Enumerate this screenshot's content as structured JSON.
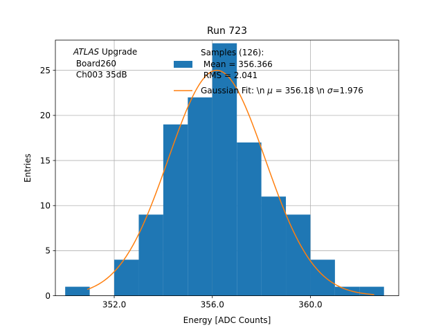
{
  "chart_data": {
    "type": "bar",
    "title": "Run 723",
    "xlabel": "Energy [ADC Counts]",
    "ylabel": "Entries",
    "xlim": [
      349.6,
      363.6
    ],
    "ylim": [
      0,
      28.35
    ],
    "xticks": [
      352.0,
      356.0,
      360.0
    ],
    "xtick_labels": [
      "352.0",
      "356.0",
      "360.0"
    ],
    "yticks": [
      0,
      5,
      10,
      15,
      20,
      25
    ],
    "ytick_labels": [
      "0",
      "5",
      "10",
      "15",
      "20",
      "25"
    ],
    "grid": true,
    "legend_position": "top-right",
    "annotation": {
      "line1_italic": "ATLAS",
      "line1_rest": " Upgrade",
      "line2": " Board260",
      "line3": " Ch003 35dB"
    },
    "histogram": {
      "name_lines": [
        "Samples (126):",
        " Mean = 356.366",
        " RMS = 2.041"
      ],
      "color": "#1f77b4",
      "bins": [
        {
          "x0": 350.0,
          "x1": 351.0,
          "count": 1
        },
        {
          "x0": 351.0,
          "x1": 352.0,
          "count": 0
        },
        {
          "x0": 352.0,
          "x1": 353.0,
          "count": 4
        },
        {
          "x0": 353.0,
          "x1": 354.0,
          "count": 9
        },
        {
          "x0": 354.0,
          "x1": 355.0,
          "count": 19
        },
        {
          "x0": 355.0,
          "x1": 356.0,
          "count": 22
        },
        {
          "x0": 356.0,
          "x1": 357.0,
          "count": 28
        },
        {
          "x0": 357.0,
          "x1": 358.0,
          "count": 17
        },
        {
          "x0": 358.0,
          "x1": 359.0,
          "count": 11
        },
        {
          "x0": 359.0,
          "x1": 360.0,
          "count": 9
        },
        {
          "x0": 360.0,
          "x1": 361.0,
          "count": 4
        },
        {
          "x0": 361.0,
          "x1": 362.0,
          "count": 1
        },
        {
          "x0": 362.0,
          "x1": 363.0,
          "count": 1
        }
      ]
    },
    "gaussian_fit": {
      "name_prefix": "Gaussian Fit: \\n ",
      "name_mu": "μ",
      "name_mid": " = 356.18 \\n ",
      "name_sigma": "σ",
      "name_suffix": "=1.976",
      "color": "#ff7f0e",
      "mu": 356.18,
      "sigma": 1.976,
      "amplitude": 25.0,
      "x_range": [
        350.9,
        362.6
      ]
    }
  }
}
